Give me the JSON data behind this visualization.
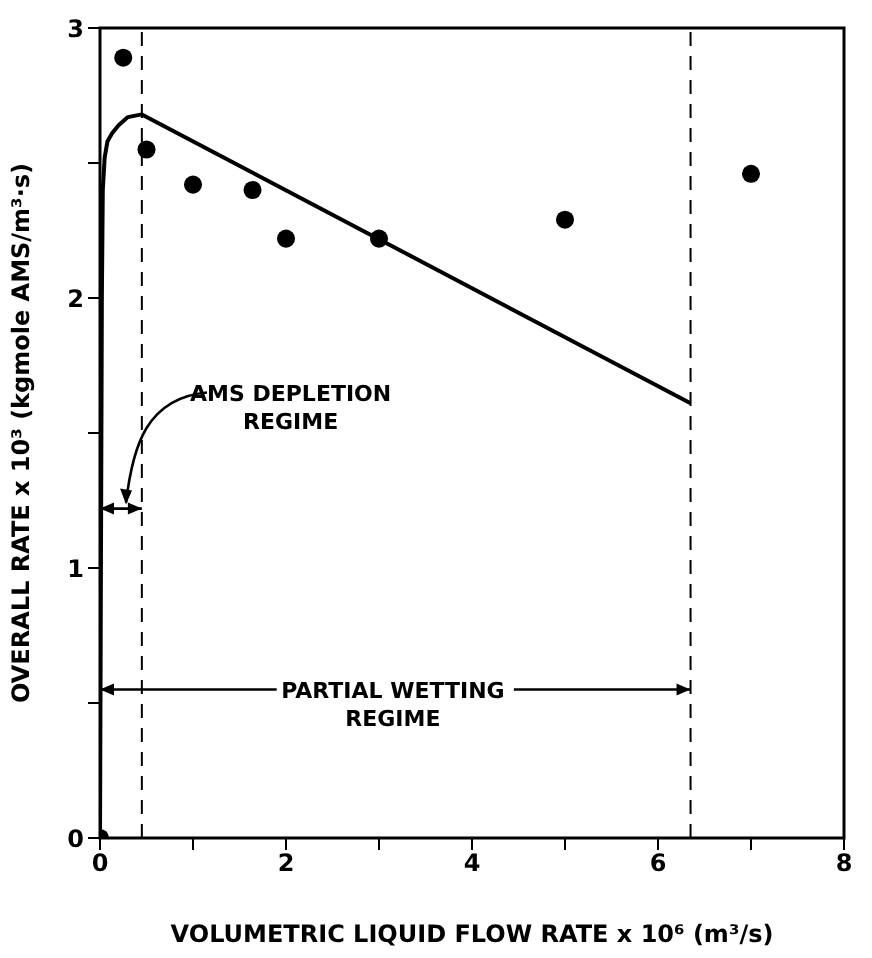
{
  "chart_data": {
    "type": "scatter",
    "xlabel": "VOLUMETRIC LIQUID FLOW RATE x 10⁶ (m³/s)",
    "ylabel": "OVERALL RATE x 10³  (kgmole AMS/m³·s)",
    "xlim": [
      0,
      8
    ],
    "xticks": [
      0,
      {
        "value": 1,
        "label": null
      },
      2,
      {
        "value": 3,
        "label": null
      },
      4,
      {
        "value": 5,
        "label": null
      },
      6,
      {
        "value": 7,
        "label": null
      },
      8
    ],
    "ylim": [
      0,
      3
    ],
    "yticks": [
      0,
      {
        "value": 0.5,
        "label": null
      },
      1,
      {
        "value": 1.5,
        "label": null
      },
      2,
      {
        "value": 2.5,
        "label": null
      },
      3
    ],
    "series": [
      {
        "type": "scatter",
        "color": "#000000",
        "marker": "circle",
        "x": [
          0,
          0.25,
          0.5,
          1.0,
          1.64,
          2.0,
          3.0,
          5.0,
          7.0
        ],
        "values": [
          0,
          2.89,
          2.55,
          2.42,
          2.4,
          2.22,
          2.22,
          2.29,
          2.46
        ]
      },
      {
        "type": "line",
        "color": "#000000",
        "marker": "none",
        "line_style": "solid",
        "x": [
          0,
          0.02,
          0.03,
          0.05,
          0.08,
          0.13,
          0.2,
          0.3,
          0.45,
          6.35
        ],
        "values": [
          0,
          2.0,
          2.4,
          2.52,
          2.58,
          2.61,
          2.64,
          2.67,
          2.68,
          1.61
        ]
      }
    ],
    "ref_lines": [
      {
        "axis": "x",
        "value": 0.45,
        "color": "#000000",
        "line_style": "dashed"
      },
      {
        "axis": "x",
        "value": 6.35,
        "color": "#000000",
        "line_style": "dashed"
      }
    ],
    "annotations": [
      "AMS DEPLETION\nREGIME",
      "PARTIAL WETTING\nREGIME"
    ]
  }
}
